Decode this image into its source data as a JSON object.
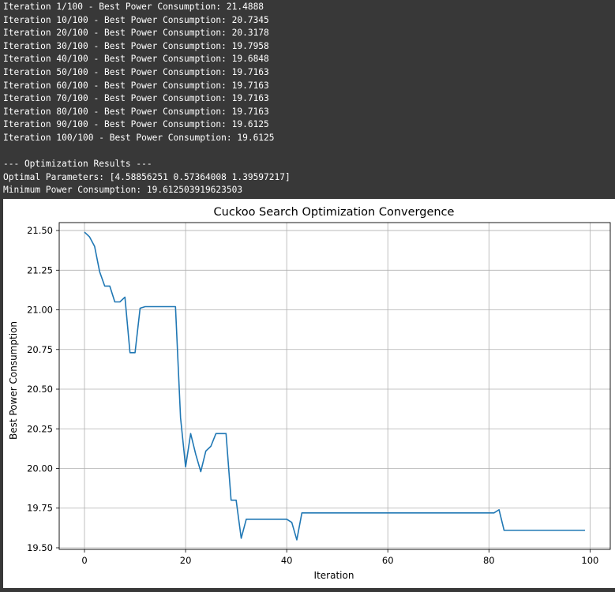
{
  "console": {
    "lines": [
      "Iteration 1/100 - Best Power Consumption: 21.4888",
      "Iteration 10/100 - Best Power Consumption: 20.7345",
      "Iteration 20/100 - Best Power Consumption: 20.3178",
      "Iteration 30/100 - Best Power Consumption: 19.7958",
      "Iteration 40/100 - Best Power Consumption: 19.6848",
      "Iteration 50/100 - Best Power Consumption: 19.7163",
      "Iteration 60/100 - Best Power Consumption: 19.7163",
      "Iteration 70/100 - Best Power Consumption: 19.7163",
      "Iteration 80/100 - Best Power Consumption: 19.7163",
      "Iteration 90/100 - Best Power Consumption: 19.6125",
      "Iteration 100/100 - Best Power Consumption: 19.6125",
      "",
      "--- Optimization Results ---",
      "Optimal Parameters: [4.58856251 0.57364008 1.39597217]",
      "Minimum Power Consumption: 19.612503919623503"
    ]
  },
  "chart_data": {
    "type": "line",
    "title": "Cuckoo Search Optimization Convergence",
    "xlabel": "Iteration",
    "ylabel": "Best Power Consumption",
    "xlim": [
      -5,
      104
    ],
    "ylim": [
      19.49,
      21.55
    ],
    "xticks": [
      0,
      20,
      40,
      60,
      80,
      100
    ],
    "yticks": [
      19.5,
      19.75,
      20.0,
      20.25,
      20.5,
      20.75,
      21.0,
      21.25,
      21.5
    ],
    "ytick_labels": [
      "19.50",
      "19.75",
      "20.00",
      "20.25",
      "20.50",
      "20.75",
      "21.00",
      "21.25",
      "21.50"
    ],
    "grid": true,
    "line_color": "#1f77b4",
    "series": [
      {
        "x": [
          0,
          1,
          2,
          3,
          4,
          5,
          6,
          7,
          8,
          9,
          10,
          11,
          12,
          13,
          14,
          15,
          16,
          17,
          18,
          19,
          20,
          21,
          22,
          23,
          24,
          25,
          26,
          27,
          28,
          29,
          30,
          31,
          32,
          33,
          34,
          35,
          36,
          37,
          38,
          39,
          40,
          41,
          42,
          43,
          44,
          45,
          46,
          47,
          48,
          49,
          50,
          51,
          52,
          53,
          54,
          55,
          56,
          57,
          58,
          59,
          60,
          61,
          62,
          63,
          64,
          65,
          66,
          67,
          68,
          69,
          70,
          71,
          72,
          73,
          74,
          75,
          76,
          77,
          78,
          79,
          80,
          81,
          82,
          83,
          84,
          85,
          86,
          87,
          88,
          89,
          90,
          91,
          92,
          93,
          94,
          95,
          96,
          97,
          98,
          99
        ],
        "y": [
          21.49,
          21.46,
          21.4,
          21.24,
          21.15,
          21.15,
          21.05,
          21.05,
          21.08,
          20.73,
          20.73,
          21.01,
          21.02,
          21.02,
          21.02,
          21.02,
          21.02,
          21.02,
          21.02,
          20.32,
          20.01,
          20.22,
          20.09,
          19.98,
          20.11,
          20.14,
          20.22,
          20.22,
          20.22,
          19.8,
          19.8,
          19.56,
          19.68,
          19.68,
          19.68,
          19.68,
          19.68,
          19.68,
          19.68,
          19.68,
          19.68,
          19.66,
          19.55,
          19.72,
          19.72,
          19.72,
          19.72,
          19.72,
          19.72,
          19.72,
          19.72,
          19.72,
          19.72,
          19.72,
          19.72,
          19.72,
          19.72,
          19.72,
          19.72,
          19.72,
          19.72,
          19.72,
          19.72,
          19.72,
          19.72,
          19.72,
          19.72,
          19.72,
          19.72,
          19.72,
          19.72,
          19.72,
          19.72,
          19.72,
          19.72,
          19.72,
          19.72,
          19.72,
          19.72,
          19.72,
          19.72,
          19.72,
          19.74,
          19.61,
          19.61,
          19.61,
          19.61,
          19.61,
          19.61,
          19.61,
          19.61,
          19.61,
          19.61,
          19.61,
          19.61,
          19.61,
          19.61,
          19.61,
          19.61,
          19.61
        ]
      }
    ]
  }
}
